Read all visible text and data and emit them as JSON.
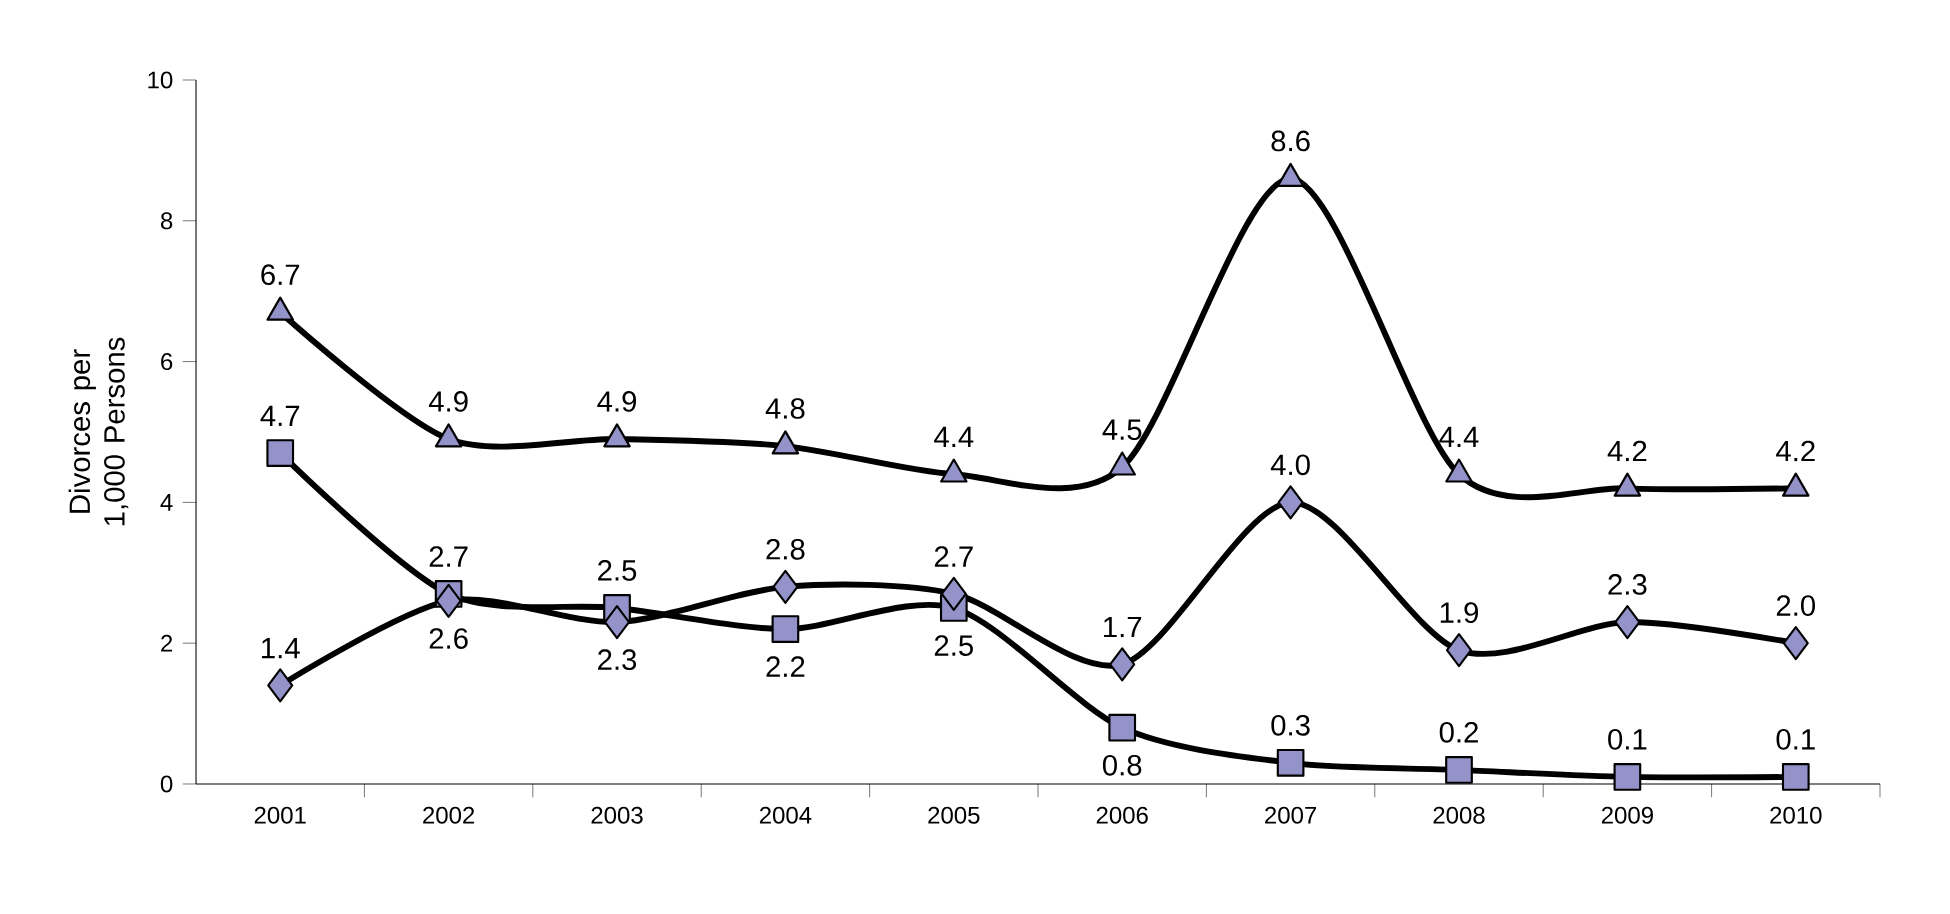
{
  "chart_data": {
    "type": "line",
    "ylabel": "Divorces per 1,000 Persons",
    "categories": [
      "2001",
      "2002",
      "2003",
      "2004",
      "2005",
      "2006",
      "2007",
      "2008",
      "2009",
      "2010"
    ],
    "series": [
      {
        "color": "#9393c9",
        "marker": "triangle",
        "values": [
          6.7,
          4.9,
          4.9,
          4.8,
          4.4,
          4.5,
          8.6,
          4.4,
          4.2,
          4.2
        ],
        "value_labels": [
          "6.7",
          "4.9",
          "4.9",
          "4.8",
          "4.4",
          "4.5",
          "8.6",
          "4.4",
          "4.2",
          "4.2"
        ]
      },
      {
        "color": "#9393c9",
        "marker": "square",
        "values": [
          4.7,
          2.7,
          2.5,
          2.2,
          2.5,
          0.8,
          0.3,
          0.2,
          0.1,
          0.1
        ],
        "value_labels": [
          "4.7",
          "2.7",
          "2.5",
          "2.2",
          "2.5",
          "0.8",
          "0.3",
          "0.2",
          "0.1",
          "0.1"
        ]
      },
      {
        "color": "#9393c9",
        "marker": "diamond",
        "values": [
          1.4,
          2.6,
          2.3,
          2.8,
          2.7,
          1.7,
          4.0,
          1.9,
          2.3,
          2.0
        ],
        "value_labels": [
          "1.4",
          "2.6",
          "2.3",
          "2.8",
          "2.7",
          "1.7",
          "4.0",
          "1.9",
          "2.3",
          "2.0"
        ]
      }
    ],
    "ylim": [
      0,
      10
    ],
    "yticks": [
      0,
      2,
      4,
      6,
      8,
      10
    ]
  }
}
